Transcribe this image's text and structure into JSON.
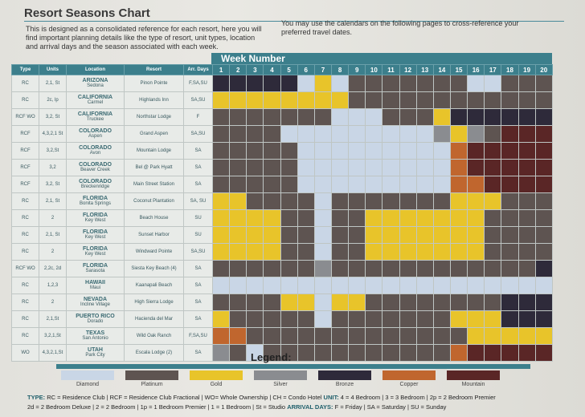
{
  "title": "Resort Seasons Chart",
  "intro_left": "This is designed as a consolidated reference for each resort, here you will find important planning details like the type of resort, unit types, location and arrival days and the season associated with each week.",
  "intro_right": "You may use the calendars on the following pages to cross-reference your preferred travel dates.",
  "week_header": "Week Number",
  "columns": [
    "Type",
    "Units",
    "Location",
    "Resort",
    "Arr. Days"
  ],
  "weeks": [
    1,
    2,
    3,
    4,
    5,
    6,
    7,
    8,
    9,
    10,
    11,
    12,
    13,
    14,
    15,
    16,
    17,
    18,
    19,
    20
  ],
  "season_colors": {
    "D": "#c9d6e6",
    "P": "#5e5451",
    "G": "#e8c42a",
    "S": "#8a8c90",
    "B": "#2e2a3a",
    "C": "#c0662e",
    "M": "#5a2626"
  },
  "rows": [
    {
      "type": "RC",
      "units": "2,1, St",
      "loc": "ARIZONA",
      "sub": "Sedona",
      "resort": "Pinon Pointe",
      "arr": "F,SA,SU",
      "weeks": "BBBBBDGDPPPPPPPDDPPP"
    },
    {
      "type": "RC",
      "units": "2c, lp",
      "loc": "CALIFORNIA",
      "sub": "Carmel",
      "resort": "Highlands Inn",
      "arr": "SA,SU",
      "weeks": "GGGGGGGGPPPPPPPPPPPP"
    },
    {
      "type": "RCF WO",
      "units": "3,2, St",
      "loc": "CALIFORNIA",
      "sub": "Truckee",
      "resort": "Northstar Lodge",
      "arr": "F",
      "weeks": "PPPPPPPDDDPPPGBBBBBB"
    },
    {
      "type": "RCF",
      "units": "4,3,2,1 St",
      "loc": "COLORADO",
      "sub": "Aspen",
      "resort": "Grand Aspen",
      "arr": "SA,SU",
      "weeks": "PPPPDDDDDDDDDSGSPMMM"
    },
    {
      "type": "RCF",
      "units": "3,2,St",
      "loc": "COLORADO",
      "sub": "Avon",
      "resort": "Mountain Lodge",
      "arr": "SA",
      "weeks": "PPPPPDDDDDDDDDCMMMMM"
    },
    {
      "type": "RCF",
      "units": "3,2",
      "loc": "COLORADO",
      "sub": "Beaver Creek",
      "resort": "Bel @ Park Hyatt",
      "arr": "SA",
      "weeks": "PPPPPDDDDDDDDDCMMMMM"
    },
    {
      "type": "RCF",
      "units": "3,2, St",
      "loc": "COLORADO",
      "sub": "Breckenridge",
      "resort": "Main Street Station",
      "arr": "SA",
      "weeks": "PPPPPDDDDDDDDDCCMMMM"
    },
    {
      "type": "RC",
      "units": "2,1, St",
      "loc": "FLORIDA",
      "sub": "Bonita Springs",
      "resort": "Coconut Plantation",
      "arr": "SA, SU",
      "weeks": "GGPPPPDPPPPPPPGGGPPP"
    },
    {
      "type": "RC",
      "units": "2",
      "loc": "FLORIDA",
      "sub": "Key West",
      "resort": "Beach House",
      "arr": "SU",
      "weeks": "GGGGPPDPPGGGGGGGPPPP"
    },
    {
      "type": "RC",
      "units": "2,1, St",
      "loc": "FLORIDA",
      "sub": "Key West",
      "resort": "Sunset Harbor",
      "arr": "SU",
      "weeks": "GGGGPPDPPGGGGGGGPPPP"
    },
    {
      "type": "RC",
      "units": "2",
      "loc": "FLORIDA",
      "sub": "Key West",
      "resort": "Windward Pointe",
      "arr": "SA,SU",
      "weeks": "GGGGPPDPPGGGGGGGPPPP"
    },
    {
      "type": "RCF WO",
      "units": "2,2c, 2d",
      "loc": "FLORIDA",
      "sub": "Sarasota",
      "resort": "Siesta Key Beach (4)",
      "arr": "SA",
      "weeks": "PPPPPPSPPPPPPPPPPPPB"
    },
    {
      "type": "RC",
      "units": "1,2,3",
      "loc": "HAWAII",
      "sub": "Maui",
      "resort": "Kaanapali Beach",
      "arr": "SA",
      "weeks": "DDDDDDDDDDDDDDDDDDDD"
    },
    {
      "type": "RC",
      "units": "2",
      "loc": "NEVADA",
      "sub": "Incline Village",
      "resort": "High Sierra Lodge",
      "arr": "SA",
      "weeks": "PPPPGGDGGPPPPPPPPBBB"
    },
    {
      "type": "RC",
      "units": "2,1,St",
      "loc": "PUERTO RICO",
      "sub": "Dorado",
      "resort": "Hacienda del Mar",
      "arr": "SA",
      "weeks": "GPPPPPDPPPPPPPGGGBBB"
    },
    {
      "type": "RC",
      "units": "3,2,1,St",
      "loc": "TEXAS",
      "sub": "San Antonio",
      "resort": "Wild Oak Ranch",
      "arr": "F,SA,SU",
      "weeks": "CCPPPPPPPPPPPPPGGGGG"
    },
    {
      "type": "WO",
      "units": "4,3,2,1,St",
      "loc": "UTAH",
      "sub": "Park City",
      "resort": "Escala Lodge (2)",
      "arr": "SA",
      "weeks": "SPDPPPPPPPPPPPCMMMMM"
    }
  ],
  "legend_title": "Legend:",
  "legend": [
    {
      "key": "D",
      "label": "Diamond"
    },
    {
      "key": "P",
      "label": "Platinum"
    },
    {
      "key": "G",
      "label": "Gold"
    },
    {
      "key": "S",
      "label": "Silver"
    },
    {
      "key": "B",
      "label": "Bronze"
    },
    {
      "key": "C",
      "label": "Copper"
    },
    {
      "key": "M",
      "label": "Mountain"
    }
  ],
  "footer": {
    "type_label": "TYPE:",
    "type_text": "RC = Residence Club | RCF = Residence Club Fractional | WO= Whole Ownership | CH = Condo Hotel",
    "unit_label": "UNIT:",
    "unit_text": "4 = 4 Bedroom | 3 = 3 Bedroom | 2p = 2 Bedroom Premier",
    "line2_text": "2d = 2 Bedroom Deluxe | 2 = 2 Bedroom | 1p = 1 Bedroom Premier | 1 = 1 Bedroom | St = Studio",
    "arr_label": "ARRIVAL DAYS:",
    "arr_text": "F = Friday | SA = Saturday | SU = Sunday"
  }
}
